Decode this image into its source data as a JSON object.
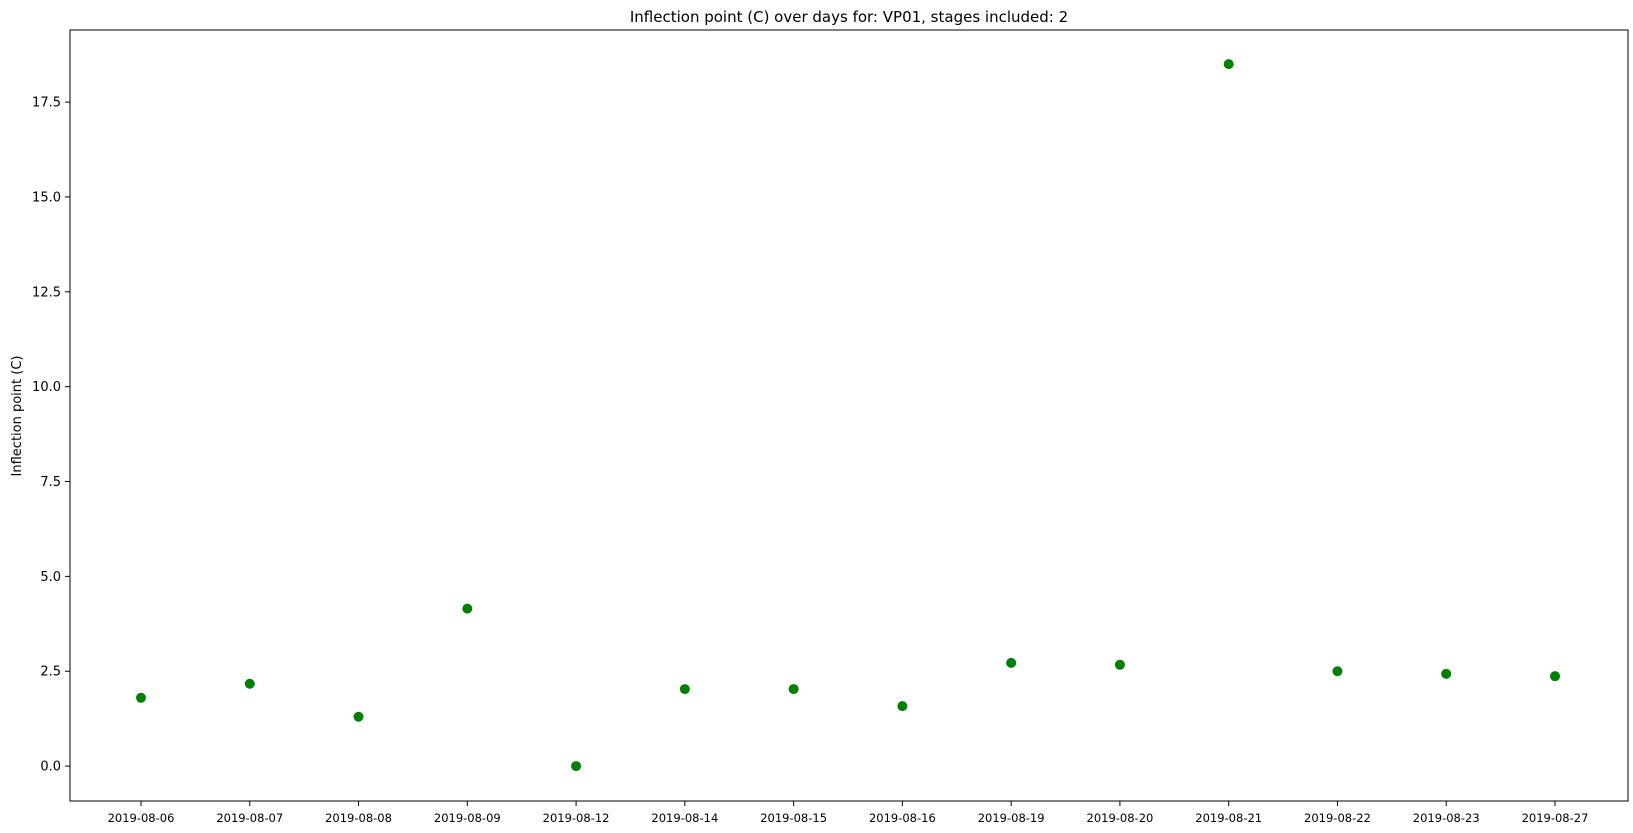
{
  "chart_data": {
    "type": "scatter",
    "title": "Inflection point (C) over days for: VP01, stages included: 2",
    "xlabel": "",
    "ylabel": "Inflection point (C)",
    "categories": [
      "2019-08-06",
      "2019-08-07",
      "2019-08-08",
      "2019-08-09",
      "2019-08-12",
      "2019-08-14",
      "2019-08-15",
      "2019-08-16",
      "2019-08-19",
      "2019-08-20",
      "2019-08-21",
      "2019-08-22",
      "2019-08-23",
      "2019-08-27"
    ],
    "values": [
      1.8,
      2.17,
      1.3,
      4.15,
      0.0,
      2.03,
      2.03,
      1.58,
      2.72,
      2.67,
      18.5,
      2.5,
      2.43,
      2.37
    ],
    "yticks": [
      "0.0",
      "2.5",
      "5.0",
      "7.5",
      "10.0",
      "12.5",
      "15.0",
      "17.5"
    ],
    "ylim": [
      -0.92,
      19.4
    ],
    "grid": false,
    "marker_color": "#008000"
  }
}
